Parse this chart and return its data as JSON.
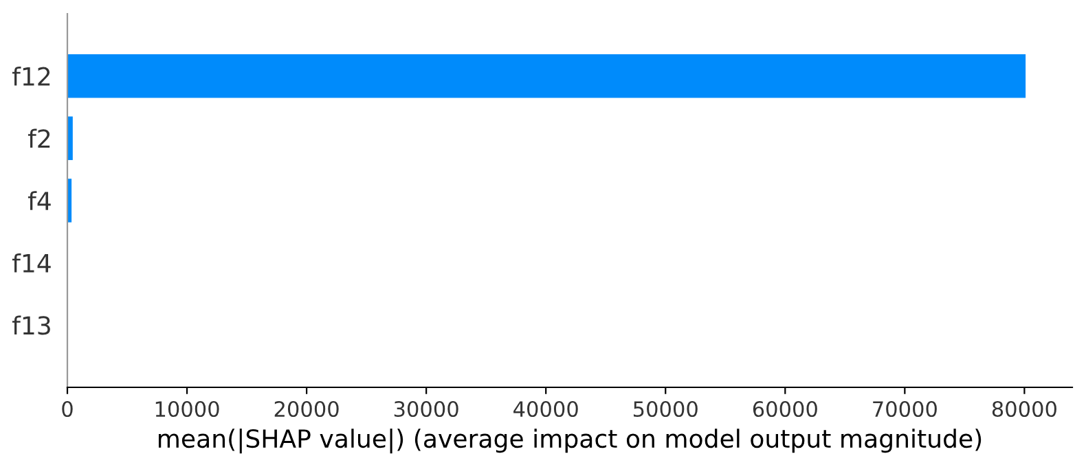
{
  "chart_data": {
    "type": "bar",
    "orientation": "horizontal",
    "xlabel": "mean(|SHAP value|) (average impact on model output magnitude)",
    "categories": [
      "f12",
      "f2",
      "f4",
      "f14",
      "f13"
    ],
    "values": [
      80100,
      450,
      350,
      0,
      0
    ],
    "color": "#008bfb",
    "xlim": [
      0,
      84000
    ],
    "xticks": [
      0,
      10000,
      20000,
      30000,
      40000,
      50000,
      60000,
      70000,
      80000
    ],
    "grid": false,
    "legend": false
  }
}
